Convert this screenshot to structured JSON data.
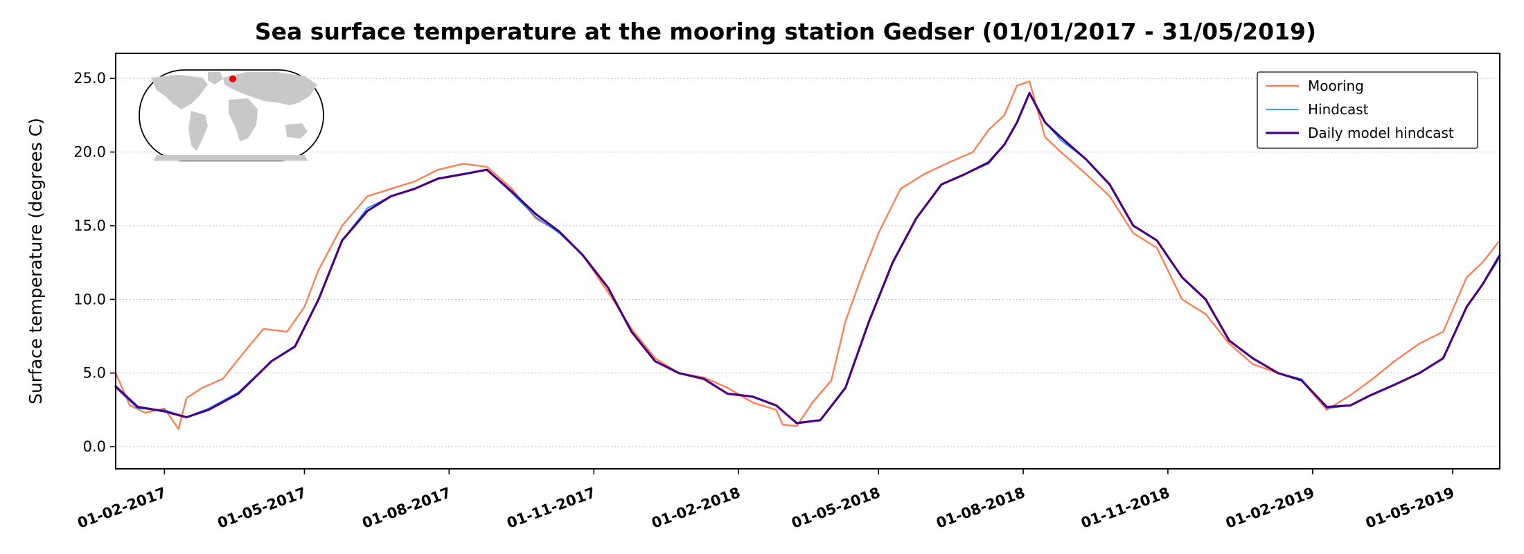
{
  "chart_data": {
    "type": "line",
    "title": "Sea surface temperature at the mooring station Gedser (01/01/2017 - 31/05/2019)",
    "xlabel": "",
    "ylabel": "Surface temperature (degrees C)",
    "x_range": [
      "2017-01-01",
      "2019-05-31"
    ],
    "ylim": [
      -1.5,
      26.7
    ],
    "yticks": [
      "0.0",
      "5.0",
      "10.0",
      "15.0",
      "20.0",
      "25.0"
    ],
    "xticks": [
      "01-02-2017",
      "01-05-2017",
      "01-08-2017",
      "01-11-2017",
      "01-02-2018",
      "01-05-2018",
      "01-08-2018",
      "01-11-2018",
      "01-02-2019",
      "01-05-2019"
    ],
    "grid": "horizontal dotted",
    "legend_position": "top-right",
    "inset": "world map with station marker",
    "series": [
      {
        "name": "Mooring",
        "color": "#ff7f50",
        "x": [
          "2017-01-01",
          "2017-01-10",
          "2017-01-20",
          "2017-02-01",
          "2017-02-10",
          "2017-02-15",
          "2017-02-25",
          "2017-03-10",
          "2017-03-25",
          "2017-04-05",
          "2017-04-20",
          "2017-05-01",
          "2017-05-10",
          "2017-05-25",
          "2017-06-10",
          "2017-06-25",
          "2017-07-10",
          "2017-07-25",
          "2017-08-10",
          "2017-08-25",
          "2017-09-10",
          "2017-09-25",
          "2017-10-10",
          "2017-10-25",
          "2017-11-10",
          "2017-11-25",
          "2017-12-10",
          "2017-12-25",
          "2018-01-10",
          "2018-01-25",
          "2018-02-10",
          "2018-02-25",
          "2018-03-01",
          "2018-03-10",
          "2018-03-20",
          "2018-04-01",
          "2018-04-10",
          "2018-04-20",
          "2018-05-01",
          "2018-05-15",
          "2018-05-30",
          "2018-06-15",
          "2018-06-30",
          "2018-07-10",
          "2018-07-20",
          "2018-07-28",
          "2018-08-05",
          "2018-08-15",
          "2018-08-25",
          "2018-09-10",
          "2018-09-25",
          "2018-10-10",
          "2018-10-25",
          "2018-11-10",
          "2018-11-25",
          "2018-12-10",
          "2018-12-25",
          "2019-01-10",
          "2019-01-25",
          "2019-02-10",
          "2019-02-25",
          "2019-03-10",
          "2019-03-25",
          "2019-04-10",
          "2019-04-25",
          "2019-05-10",
          "2019-05-20",
          "2019-05-31"
        ],
        "values": [
          5.0,
          2.8,
          2.3,
          2.6,
          1.2,
          3.3,
          4.0,
          4.6,
          6.6,
          8.0,
          7.8,
          9.5,
          12.0,
          15.0,
          17.0,
          17.5,
          18.0,
          18.8,
          19.2,
          19.0,
          17.5,
          15.5,
          14.6,
          13.0,
          10.5,
          8.0,
          6.0,
          5.0,
          4.7,
          4.0,
          3.0,
          2.5,
          1.5,
          1.4,
          3.0,
          4.5,
          8.5,
          11.5,
          14.5,
          17.5,
          18.5,
          19.3,
          20.0,
          21.5,
          22.5,
          24.5,
          24.8,
          21.0,
          20.0,
          18.5,
          17.0,
          14.5,
          13.5,
          10.0,
          9.0,
          7.0,
          5.6,
          5.0,
          4.5,
          2.5,
          3.5,
          4.5,
          5.8,
          7.0,
          7.8,
          11.5,
          12.5,
          14.0
        ]
      },
      {
        "name": "Hindcast",
        "color": "#1e90ff",
        "x": [
          "2017-01-01",
          "2017-01-15",
          "2017-02-01",
          "2017-02-15",
          "2017-03-01",
          "2017-03-20",
          "2017-04-10",
          "2017-04-25",
          "2017-05-10",
          "2017-05-25",
          "2017-06-10",
          "2017-06-25",
          "2017-07-10",
          "2017-07-25",
          "2017-08-10",
          "2017-08-25",
          "2017-09-10",
          "2017-09-25",
          "2017-10-10",
          "2017-10-25",
          "2017-11-10",
          "2017-11-25",
          "2017-12-10",
          "2017-12-25",
          "2018-01-10",
          "2018-01-25",
          "2018-02-10",
          "2018-02-25",
          "2018-03-10",
          "2018-03-25",
          "2018-04-10",
          "2018-04-25",
          "2018-05-10",
          "2018-05-25",
          "2018-06-10",
          "2018-06-25",
          "2018-07-10",
          "2018-07-20",
          "2018-07-28",
          "2018-08-05",
          "2018-08-15",
          "2018-08-25",
          "2018-09-10",
          "2018-09-25",
          "2018-10-10",
          "2018-10-25",
          "2018-11-10",
          "2018-11-25",
          "2018-12-10",
          "2018-12-25",
          "2019-01-10",
          "2019-01-25",
          "2019-02-10",
          "2019-02-25",
          "2019-03-10",
          "2019-03-25",
          "2019-04-10",
          "2019-04-25",
          "2019-05-10",
          "2019-05-20",
          "2019-05-31"
        ],
        "values": [
          4.0,
          2.6,
          2.5,
          2.0,
          2.6,
          3.7,
          5.8,
          6.8,
          10.0,
          14.0,
          16.2,
          17.0,
          17.5,
          18.2,
          18.5,
          18.8,
          17.2,
          15.6,
          14.5,
          13.0,
          10.8,
          7.8,
          5.8,
          5.0,
          4.6,
          3.6,
          3.4,
          2.8,
          1.6,
          1.8,
          4.0,
          8.5,
          12.5,
          15.5,
          17.8,
          18.5,
          19.2,
          20.5,
          22.0,
          24.0,
          22.0,
          20.8,
          19.5,
          17.8,
          15.0,
          14.0,
          11.5,
          10.0,
          7.2,
          6.0,
          5.0,
          4.6,
          2.6,
          2.8,
          3.5,
          4.2,
          5.0,
          6.0,
          9.5,
          11.0,
          12.8
        ]
      },
      {
        "name": "Daily model hindcast",
        "color": "#4b0082",
        "x": [
          "2017-01-01",
          "2017-01-15",
          "2017-02-01",
          "2017-02-15",
          "2017-03-01",
          "2017-03-20",
          "2017-04-10",
          "2017-04-25",
          "2017-05-10",
          "2017-05-25",
          "2017-06-10",
          "2017-06-25",
          "2017-07-10",
          "2017-07-25",
          "2017-08-10",
          "2017-08-25",
          "2017-09-10",
          "2017-09-25",
          "2017-10-10",
          "2017-10-25",
          "2017-11-10",
          "2017-11-25",
          "2017-12-10",
          "2017-12-25",
          "2018-01-10",
          "2018-01-25",
          "2018-02-10",
          "2018-02-25",
          "2018-03-10",
          "2018-03-25",
          "2018-04-10",
          "2018-04-25",
          "2018-05-10",
          "2018-05-25",
          "2018-06-10",
          "2018-06-25",
          "2018-07-10",
          "2018-07-20",
          "2018-07-28",
          "2018-08-05",
          "2018-08-15",
          "2018-08-25",
          "2018-09-10",
          "2018-09-25",
          "2018-10-10",
          "2018-10-25",
          "2018-11-10",
          "2018-11-25",
          "2018-12-10",
          "2018-12-25",
          "2019-01-10",
          "2019-01-25",
          "2019-02-10",
          "2019-02-25",
          "2019-03-10",
          "2019-03-25",
          "2019-04-10",
          "2019-04-25",
          "2019-05-10",
          "2019-05-20",
          "2019-05-31"
        ],
        "values": [
          4.1,
          2.7,
          2.4,
          2.0,
          2.5,
          3.6,
          5.8,
          6.8,
          10.0,
          14.0,
          16.0,
          17.0,
          17.5,
          18.2,
          18.5,
          18.8,
          17.3,
          15.8,
          14.6,
          13.0,
          10.8,
          7.8,
          5.8,
          5.0,
          4.6,
          3.6,
          3.4,
          2.8,
          1.6,
          1.8,
          4.0,
          8.5,
          12.5,
          15.5,
          17.8,
          18.5,
          19.3,
          20.5,
          22.0,
          24.0,
          22.0,
          21.0,
          19.5,
          17.8,
          15.0,
          14.0,
          11.5,
          10.0,
          7.2,
          6.0,
          5.0,
          4.5,
          2.7,
          2.8,
          3.5,
          4.2,
          5.0,
          6.0,
          9.5,
          11.0,
          13.0
        ]
      }
    ]
  }
}
